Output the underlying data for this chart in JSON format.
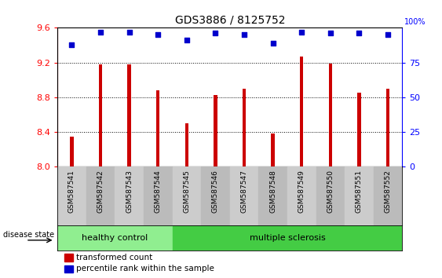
{
  "title": "GDS3886 / 8125752",
  "samples": [
    "GSM587541",
    "GSM587542",
    "GSM587543",
    "GSM587544",
    "GSM587545",
    "GSM587546",
    "GSM587547",
    "GSM587548",
    "GSM587549",
    "GSM587550",
    "GSM587551",
    "GSM587552"
  ],
  "transformed_counts": [
    8.35,
    9.18,
    9.18,
    8.88,
    8.5,
    8.83,
    8.9,
    8.38,
    9.27,
    9.19,
    8.85,
    8.9
  ],
  "percentile_ranks": [
    88,
    97,
    97,
    95,
    91,
    96,
    95,
    89,
    97,
    96,
    96,
    95
  ],
  "ylim_left": [
    8.0,
    9.6
  ],
  "yticks_left": [
    8.0,
    8.4,
    8.8,
    9.2,
    9.6
  ],
  "yticks_right": [
    0,
    25,
    50,
    75
  ],
  "bar_color": "#cc0000",
  "dot_color": "#0000cc",
  "healthy_control_count": 4,
  "healthy_color": "#90EE90",
  "ms_color": "#44cc44",
  "label_healthy": "healthy control",
  "label_ms": "multiple sclerosis",
  "disease_state_label": "disease state",
  "legend_bar_label": "transformed count",
  "legend_dot_label": "percentile rank within the sample",
  "col_bg_light": "#cccccc",
  "col_bg_dark": "#bbbbbb",
  "plot_bg": "#ffffff"
}
